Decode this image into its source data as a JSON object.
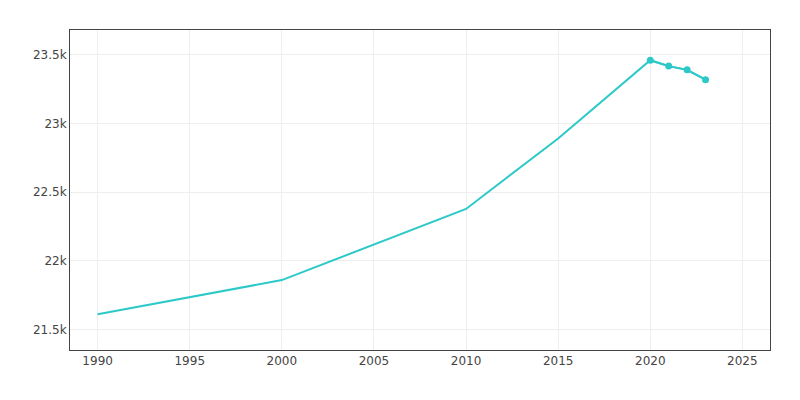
{
  "chart_data": {
    "type": "line",
    "x": [
      1990,
      2000,
      2010,
      2015,
      2020,
      2021,
      2022,
      2023
    ],
    "series": [
      {
        "color": "#2dc9c9",
        "values": [
          21611,
          21859,
          22377,
          22890,
          23460,
          23417,
          23390,
          23318
        ]
      },
      {
        "color": "#2dc9c9",
        "marker": "circle",
        "values": [
          null,
          null,
          null,
          null,
          23460,
          23417,
          23390,
          23318
        ]
      }
    ],
    "xlim": [
      1988.5,
      2026.5
    ],
    "xticks": [
      1990,
      1995,
      2000,
      2005,
      2010,
      2015,
      2020,
      2025
    ],
    "ylim": [
      21350,
      23680
    ],
    "yticks": [
      {
        "value": 21500,
        "label": "21.5k"
      },
      {
        "value": 22000,
        "label": "22k"
      },
      {
        "value": 22500,
        "label": "22.5k"
      },
      {
        "value": 23000,
        "label": "23k"
      },
      {
        "value": 23500,
        "label": "23.5k"
      }
    ],
    "grid": true
  }
}
